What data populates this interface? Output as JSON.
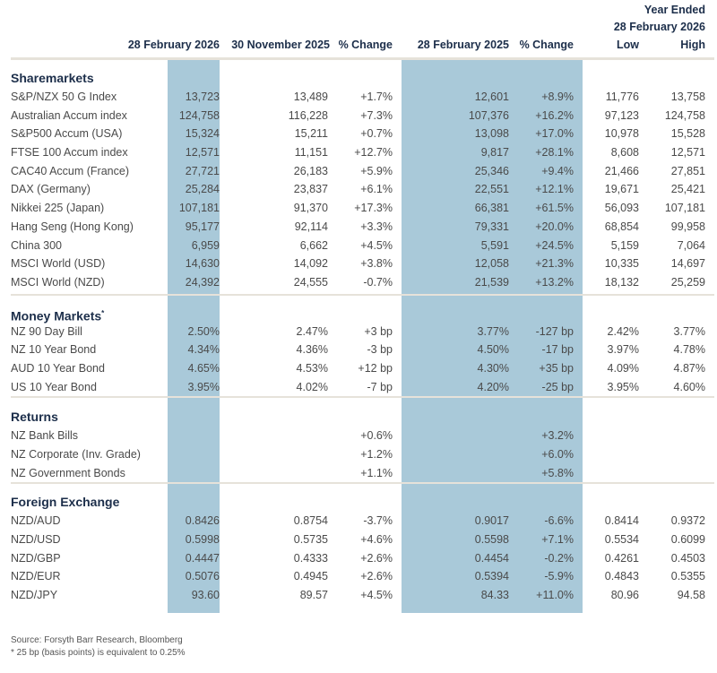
{
  "header": {
    "year_ended": "Year Ended",
    "year_ended_date": "28 February 2026",
    "columns": [
      "",
      "28 February 2026",
      "30 November 2025",
      "% Change",
      "28 February 2025",
      "% Change",
      "Low",
      "High"
    ]
  },
  "colors": {
    "shade": "#a9c9d9",
    "heading": "#1c2e4a",
    "text": "#4a4a4a"
  },
  "sections": [
    {
      "title": "Sharemarkets",
      "mark": "",
      "rows": [
        [
          "S&P/NZX 50 G Index",
          "13,723",
          "13,489",
          "+1.7%",
          "12,601",
          "+8.9%",
          "11,776",
          "13,758"
        ],
        [
          "Australian Accum index",
          "124,758",
          "116,228",
          "+7.3%",
          "107,376",
          "+16.2%",
          "97,123",
          "124,758"
        ],
        [
          "S&P500 Accum (USA)",
          "15,324",
          "15,211",
          "+0.7%",
          "13,098",
          "+17.0%",
          "10,978",
          "15,528"
        ],
        [
          "FTSE 100 Accum index",
          "12,571",
          "11,151",
          "+12.7%",
          "9,817",
          "+28.1%",
          "8,608",
          "12,571"
        ],
        [
          "CAC40 Accum (France)",
          "27,721",
          "26,183",
          "+5.9%",
          "25,346",
          "+9.4%",
          "21,466",
          "27,851"
        ],
        [
          "DAX (Germany)",
          "25,284",
          "23,837",
          "+6.1%",
          "22,551",
          "+12.1%",
          "19,671",
          "25,421"
        ],
        [
          "Nikkei 225 (Japan)",
          "107,181",
          "91,370",
          "+17.3%",
          "66,381",
          "+61.5%",
          "56,093",
          "107,181"
        ],
        [
          "Hang Seng (Hong Kong)",
          "95,177",
          "92,114",
          "+3.3%",
          "79,331",
          "+20.0%",
          "68,854",
          "99,958"
        ],
        [
          "China 300",
          "6,959",
          "6,662",
          "+4.5%",
          "5,591",
          "+24.5%",
          "5,159",
          "7,064"
        ],
        [
          "MSCI World (USD)",
          "14,630",
          "14,092",
          "+3.8%",
          "12,058",
          "+21.3%",
          "10,335",
          "14,697"
        ],
        [
          "MSCI World (NZD)",
          "24,392",
          "24,555",
          "-0.7%",
          "21,539",
          "+13.2%",
          "18,132",
          "25,259"
        ]
      ]
    },
    {
      "title": "Money Markets",
      "mark": "*",
      "rows": [
        [
          "NZ 90 Day Bill",
          "2.50%",
          "2.47%",
          "+3 bp",
          "3.77%",
          "-127 bp",
          "2.42%",
          "3.77%"
        ],
        [
          "NZ 10 Year Bond",
          "4.34%",
          "4.36%",
          "-3 bp",
          "4.50%",
          "-17 bp",
          "3.97%",
          "4.78%"
        ],
        [
          "AUD 10 Year Bond",
          "4.65%",
          "4.53%",
          "+12 bp",
          "4.30%",
          "+35 bp",
          "4.09%",
          "4.87%"
        ],
        [
          "US 10 Year Bond",
          "3.95%",
          "4.02%",
          "-7 bp",
          "4.20%",
          "-25 bp",
          "3.95%",
          "4.60%"
        ]
      ]
    },
    {
      "title": "Returns",
      "mark": "",
      "rows": [
        [
          "NZ Bank Bills",
          "",
          "",
          "+0.6%",
          "",
          "+3.2%",
          "",
          ""
        ],
        [
          "NZ Corporate (Inv. Grade)",
          "",
          "",
          "+1.2%",
          "",
          "+6.0%",
          "",
          ""
        ],
        [
          "NZ Government Bonds",
          "",
          "",
          "+1.1%",
          "",
          "+5.8%",
          "",
          ""
        ]
      ]
    },
    {
      "title": "Foreign Exchange",
      "mark": "",
      "rows": [
        [
          "NZD/AUD",
          "0.8426",
          "0.8754",
          "-3.7%",
          "0.9017",
          "-6.6%",
          "0.8414",
          "0.9372"
        ],
        [
          "NZD/USD",
          "0.5998",
          "0.5735",
          "+4.6%",
          "0.5598",
          "+7.1%",
          "0.5534",
          "0.6099"
        ],
        [
          "NZD/GBP",
          "0.4447",
          "0.4333",
          "+2.6%",
          "0.4454",
          "-0.2%",
          "0.4261",
          "0.4503"
        ],
        [
          "NZD/EUR",
          "0.5076",
          "0.4945",
          "+2.6%",
          "0.5394",
          "-5.9%",
          "0.4843",
          "0.5355"
        ],
        [
          "NZD/JPY",
          "93.60",
          "89.57",
          "+4.5%",
          "84.33",
          "+11.0%",
          "80.96",
          "94.58"
        ]
      ]
    }
  ],
  "footer": {
    "source": "Source: Forsyth Barr Research, Bloomberg",
    "note": "* 25 bp (basis points) is equivalent to 0.25%"
  }
}
